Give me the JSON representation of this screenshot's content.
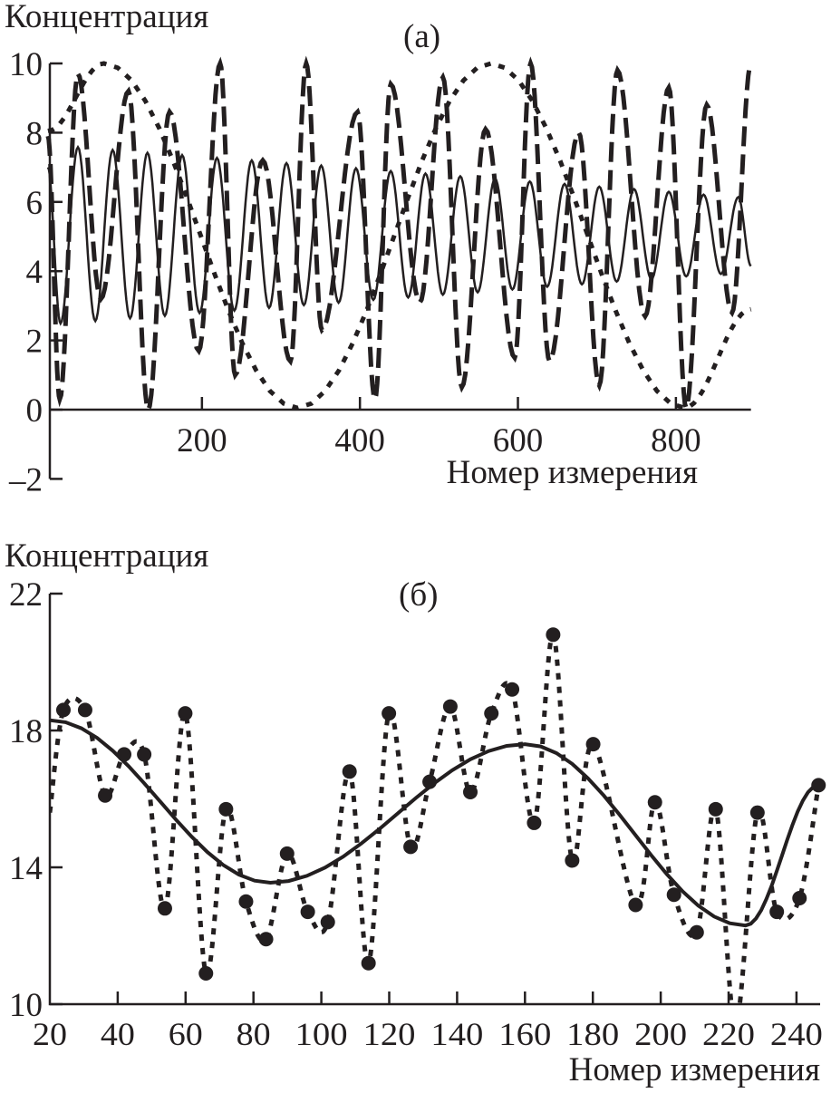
{
  "chart_data": [
    {
      "type": "line",
      "panel_label": "(a)",
      "ylabel": "Концентрация",
      "xlabel": "Номер измерения",
      "xlim": [
        5,
        895
      ],
      "ylim": [
        -2,
        10
      ],
      "x_ticks": [
        "200",
        "400",
        "600",
        "800"
      ],
      "y_ticks": [
        "10",
        "8",
        "6",
        "4",
        "2",
        "0",
        "–2"
      ],
      "grid": false,
      "series": [
        {
          "style": "dotted",
          "extrema": [
            [
              5,
              8.05
            ],
            [
              76,
              10
            ],
            [
              321,
              0.05
            ],
            [
              566,
              10
            ],
            [
              811,
              0.05
            ],
            [
              895,
              2.9
            ]
          ]
        },
        {
          "style": "dashed",
          "extrema": [
            [
              5,
              7.9
            ],
            [
              20,
              0.3
            ],
            [
              43,
              9.7
            ],
            [
              72,
              3.2
            ],
            [
              107,
              9.2
            ],
            [
              132,
              0.0
            ],
            [
              159,
              8.6
            ],
            [
              196,
              1.7
            ],
            [
              223,
              10
            ],
            [
              242,
              1.0
            ],
            [
              277,
              7.2
            ],
            [
              312,
              1.4
            ],
            [
              332,
              10
            ],
            [
              352,
              2.3
            ],
            [
              397,
              8.6
            ],
            [
              419,
              0.3
            ],
            [
              439,
              9.4
            ],
            [
              476,
              3.1
            ],
            [
              505,
              9.6
            ],
            [
              529,
              0.65
            ],
            [
              559,
              8.1
            ],
            [
              596,
              1.5
            ],
            [
              616,
              10
            ],
            [
              640,
              1.4
            ],
            [
              677,
              8.0
            ],
            [
              703,
              0.7
            ],
            [
              726,
              9.8
            ],
            [
              761,
              2.7
            ],
            [
              791,
              9.3
            ],
            [
              813,
              0.05
            ],
            [
              839,
              8.8
            ],
            [
              871,
              2.8
            ],
            [
              895,
              10
            ]
          ]
        },
        {
          "style": "solid",
          "extrema": [
            [
              5,
              7.0
            ],
            [
              21,
              2.49
            ],
            [
              43,
              7.58
            ],
            [
              65,
              2.56
            ],
            [
              87,
              7.5
            ],
            [
              109,
              2.64
            ],
            [
              131,
              7.42
            ],
            [
              153,
              2.71
            ],
            [
              175,
              7.35
            ],
            [
              197,
              2.79
            ],
            [
              219,
              7.27
            ],
            [
              241,
              2.86
            ],
            [
              263,
              7.2
            ],
            [
              285,
              2.94
            ],
            [
              307,
              7.12
            ],
            [
              329,
              3.02
            ],
            [
              351,
              7.05
            ],
            [
              373,
              3.09
            ],
            [
              395,
              6.97
            ],
            [
              417,
              3.17
            ],
            [
              439,
              6.89
            ],
            [
              461,
              3.24
            ],
            [
              483,
              6.82
            ],
            [
              505,
              3.32
            ],
            [
              527,
              6.74
            ],
            [
              549,
              3.39
            ],
            [
              571,
              6.67
            ],
            [
              593,
              3.47
            ],
            [
              615,
              6.59
            ],
            [
              637,
              3.55
            ],
            [
              659,
              6.52
            ],
            [
              681,
              3.62
            ],
            [
              703,
              6.44
            ],
            [
              725,
              3.7
            ],
            [
              747,
              6.37
            ],
            [
              769,
              3.77
            ],
            [
              791,
              6.29
            ],
            [
              813,
              3.85
            ],
            [
              835,
              6.21
            ],
            [
              857,
              3.92
            ],
            [
              879,
              6.14
            ],
            [
              895,
              4.15
            ]
          ]
        }
      ]
    },
    {
      "type": "line",
      "panel_label": "(б)",
      "ylabel": "Концентрация",
      "xlabel": "Номер измерения",
      "xlim": [
        20,
        250
      ],
      "ylim": [
        10,
        22
      ],
      "x_ticks": [
        "20",
        "40",
        "60",
        "80",
        "100",
        "120",
        "140",
        "160",
        "180",
        "200",
        "220",
        "240"
      ],
      "y_ticks": [
        "22",
        "18",
        "14",
        "10"
      ],
      "grid": false,
      "points": [
        [
          24,
          18.6
        ],
        [
          30.4,
          18.6
        ],
        [
          36.3,
          16.1
        ],
        [
          41.9,
          17.3
        ],
        [
          47.8,
          17.3
        ],
        [
          53.9,
          12.8
        ],
        [
          59.9,
          18.5
        ],
        [
          66,
          10.9
        ],
        [
          71.9,
          15.7
        ],
        [
          77.8,
          13.0
        ],
        [
          83.7,
          11.9
        ],
        [
          89.9,
          14.4
        ],
        [
          96,
          12.7
        ],
        [
          101.9,
          12.4
        ],
        [
          108.3,
          16.8
        ],
        [
          113.9,
          11.2
        ],
        [
          119.9,
          18.5
        ],
        [
          126.3,
          14.6
        ],
        [
          131.9,
          16.5
        ],
        [
          138,
          18.7
        ],
        [
          143.9,
          16.2
        ],
        [
          150.1,
          18.5
        ],
        [
          156.2,
          19.2
        ],
        [
          162.7,
          15.3
        ],
        [
          168.3,
          20.8
        ],
        [
          173.9,
          14.2
        ],
        [
          180.1,
          17.6
        ],
        [
          192.6,
          12.9
        ],
        [
          198.3,
          15.9
        ],
        [
          203.9,
          13.2
        ],
        [
          210.6,
          12.1
        ],
        [
          216.2,
          15.7
        ],
        [
          228.5,
          15.6
        ],
        [
          234.2,
          12.7
        ],
        [
          240.9,
          13.1
        ],
        [
          246.5,
          16.4
        ]
      ],
      "dotted_line": [
        [
          20,
          15.6
        ],
        [
          24,
          18.6
        ],
        [
          30.4,
          18.6
        ],
        [
          36.3,
          16.1
        ],
        [
          41.9,
          17.3
        ],
        [
          47.8,
          17.3
        ],
        [
          53.9,
          12.8
        ],
        [
          59.9,
          18.5
        ],
        [
          66,
          10.9
        ],
        [
          71.9,
          15.7
        ],
        [
          77.8,
          13.0
        ],
        [
          83.7,
          11.9
        ],
        [
          89.9,
          14.4
        ],
        [
          96,
          12.7
        ],
        [
          101.9,
          12.4
        ],
        [
          108.3,
          16.8
        ],
        [
          113.9,
          11.2
        ],
        [
          119.9,
          18.5
        ],
        [
          126.3,
          14.6
        ],
        [
          131.9,
          16.5
        ],
        [
          138,
          18.7
        ],
        [
          143.9,
          16.2
        ],
        [
          150.1,
          18.5
        ],
        [
          156.2,
          19.2
        ],
        [
          162.7,
          15.3
        ],
        [
          168.3,
          20.8
        ],
        [
          173.9,
          14.2
        ],
        [
          180.1,
          17.6
        ],
        [
          192.6,
          12.9
        ],
        [
          198.3,
          15.9
        ],
        [
          203.9,
          13.2
        ],
        [
          210.6,
          12.1
        ],
        [
          216.2,
          15.7
        ],
        [
          222,
          9.4
        ],
        [
          228.5,
          15.6
        ],
        [
          234.2,
          12.7
        ],
        [
          240.9,
          13.1
        ],
        [
          246.5,
          16.4
        ]
      ],
      "fit_curve": [
        [
          20,
          18.3
        ],
        [
          85,
          13.55
        ],
        [
          160,
          17.6
        ],
        [
          225,
          12.3
        ],
        [
          246.5,
          16.4
        ]
      ]
    }
  ]
}
